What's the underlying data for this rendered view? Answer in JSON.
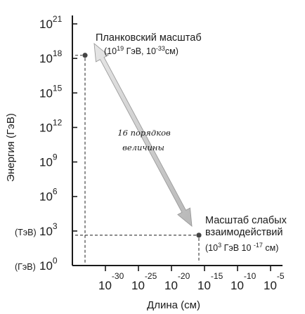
{
  "chart_data": {
    "type": "scatter",
    "title": "",
    "ylabel": "Энергия (ГэВ)",
    "xlabel": "Длина (см)",
    "y_scale": "log10",
    "x_scale": "log10",
    "ylim": [
      0,
      21
    ],
    "xlim": [
      -35,
      -5
    ],
    "y_ticks": [
      {
        "base": "10",
        "exp": "0",
        "prefix": "(ГэВ)",
        "value": 0
      },
      {
        "base": "10",
        "exp": "3",
        "prefix": "(ТэВ)",
        "value": 3
      },
      {
        "base": "10",
        "exp": "6",
        "prefix": "",
        "value": 6
      },
      {
        "base": "10",
        "exp": "9",
        "prefix": "",
        "value": 9
      },
      {
        "base": "10",
        "exp": "12",
        "prefix": "",
        "value": 12
      },
      {
        "base": "10",
        "exp": "15",
        "prefix": "",
        "value": 15
      },
      {
        "base": "10",
        "exp": "18",
        "prefix": "",
        "value": 18
      },
      {
        "base": "10",
        "exp": "21",
        "prefix": "",
        "value": 21
      }
    ],
    "x_ticks": [
      {
        "base": "10",
        "exp": "-30",
        "value": -30
      },
      {
        "base": "10",
        "exp": "-25",
        "value": -25
      },
      {
        "base": "10",
        "exp": "-20",
        "value": -20
      },
      {
        "base": "10",
        "exp": "-15",
        "value": -15
      },
      {
        "base": "10",
        "exp": "-10",
        "value": -10
      },
      {
        "base": "10",
        "exp": "-5",
        "value": -5
      }
    ],
    "points": [
      {
        "name": "Планковский масштаб",
        "x": -33,
        "y": 19,
        "label": {
          "line1": "Планковский масштаб",
          "line2_pre": "(10",
          "line2_sup1": "19",
          "line2_mid": " ГэВ, 10",
          "line2_sup2": "-33",
          "line2_post": "см)"
        }
      },
      {
        "name": "Масштаб слабых взаимодействий",
        "x": -17,
        "y": 3,
        "label": {
          "line1": "Масштаб слабых",
          "line2": "взаимодействий",
          "line3_pre": "(10",
          "line3_sup1": "3",
          "line3_mid": " ГэВ 10 ",
          "line3_sup2": "-17",
          "line3_post": " см)"
        }
      }
    ],
    "annotation": {
      "line1": "16 порядков",
      "line2": "величины"
    },
    "colors": {
      "axis": "#1a1a1a",
      "arrow": "#9a9a9a",
      "point": "#444444",
      "dashes": "#333333"
    }
  }
}
